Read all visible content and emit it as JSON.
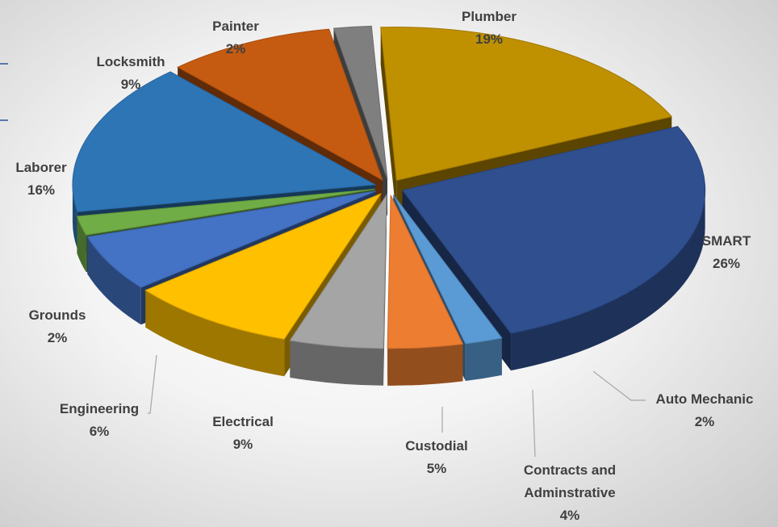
{
  "chart_data": {
    "type": "pie",
    "title": "",
    "slices": [
      {
        "label": "Plumber",
        "percent": "19%",
        "value": 19,
        "color": "#bf9000"
      },
      {
        "label": "SMART",
        "percent": "26%",
        "value": 26,
        "color": "#2f4f8f"
      },
      {
        "label": "Auto Mechanic",
        "percent": "2%",
        "value": 2,
        "color": "#5b9bd5"
      },
      {
        "label": "Contracts and Adminstrative",
        "percent": "4%",
        "value": 4,
        "color": "#ed7d31"
      },
      {
        "label": "Custodial",
        "percent": "5%",
        "value": 5,
        "color": "#a5a5a5"
      },
      {
        "label": "Electrical",
        "percent": "9%",
        "value": 9,
        "color": "#ffc000"
      },
      {
        "label": "Engineering",
        "percent": "6%",
        "value": 6,
        "color": "#4472c4"
      },
      {
        "label": "Grounds",
        "percent": "2%",
        "value": 2,
        "color": "#70ad47"
      },
      {
        "label": "Laborer",
        "percent": "16%",
        "value": 16,
        "color": "#2e75b6"
      },
      {
        "label": "Locksmith",
        "percent": "9%",
        "value": 9,
        "color": "#c55a11"
      },
      {
        "label": "Painter",
        "percent": "2%",
        "value": 2,
        "color": "#7f7f7f"
      }
    ],
    "exploded": true,
    "three_d": true,
    "legend": "none"
  }
}
